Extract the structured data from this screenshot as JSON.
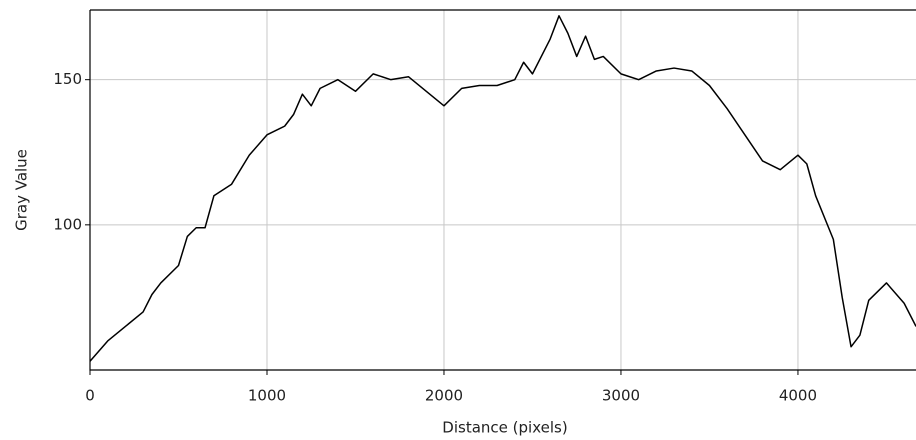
{
  "chart_data": {
    "type": "line",
    "x_label": "Distance (pixels)",
    "y_label": "Gray Value",
    "x": [
      0,
      100,
      200,
      300,
      350,
      400,
      500,
      550,
      600,
      650,
      700,
      800,
      900,
      1000,
      1100,
      1150,
      1200,
      1250,
      1300,
      1400,
      1500,
      1600,
      1700,
      1800,
      1900,
      2000,
      2100,
      2200,
      2300,
      2400,
      2450,
      2500,
      2600,
      2650,
      2700,
      2750,
      2800,
      2850,
      2900,
      3000,
      3100,
      3200,
      3300,
      3400,
      3500,
      3600,
      3700,
      3800,
      3900,
      4000,
      4050,
      4100,
      4200,
      4250,
      4300,
      4350,
      4400,
      4500,
      4600,
      4667
    ],
    "series": [
      {
        "name": "Gray Value",
        "color": "#000000",
        "values": [
          53,
          60,
          65,
          70,
          76,
          80,
          86,
          96,
          99,
          99,
          110,
          114,
          124,
          131,
          134,
          138,
          145,
          141,
          147,
          150,
          146,
          152,
          150,
          151,
          146,
          141,
          147,
          148,
          148,
          150,
          156,
          152,
          164,
          172,
          166,
          158,
          165,
          157,
          158,
          152,
          150,
          153,
          154,
          153,
          148,
          140,
          131,
          122,
          119,
          124,
          121,
          110,
          95,
          75,
          58,
          62,
          74,
          80,
          73,
          65
        ]
      }
    ],
    "xlim": [
      0,
      4667
    ],
    "ylim": [
      50,
      174
    ],
    "xticks": [
      0,
      1000,
      2000,
      3000,
      4000
    ],
    "yticks": [
      100,
      150
    ],
    "grid": true
  }
}
